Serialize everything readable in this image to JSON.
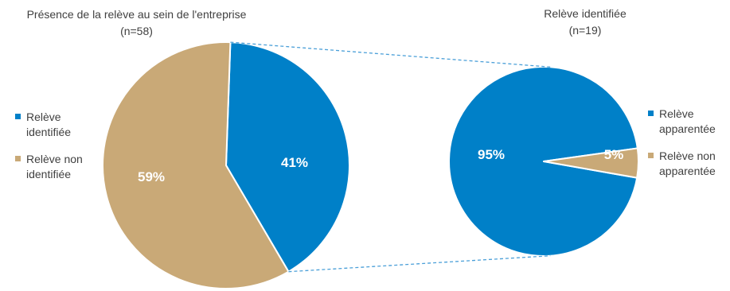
{
  "chart_data": [
    {
      "type": "pie",
      "title": "Présence de la relève au sein de l'entreprise",
      "subtitle": "(n=58)",
      "slices": [
        {
          "label": "Relève identifiée",
          "value": 41,
          "value_label": "41%",
          "color": "#0080c8"
        },
        {
          "label": "Relève non identifiée",
          "value": 59,
          "value_label": "59%",
          "color": "#c9a977"
        }
      ],
      "legend_labels": [
        "Relève\nidentifiée",
        "Relève non\nidentifiée"
      ],
      "legend": "left"
    },
    {
      "type": "pie",
      "title": "Relève identifiée",
      "subtitle": "(n=19)",
      "slices": [
        {
          "label": "Relève apparentée",
          "value": 95,
          "value_label": "95%",
          "color": "#0080c8"
        },
        {
          "label": "Relève non apparentée",
          "value": 5,
          "value_label": "5%",
          "color": "#c9a977"
        }
      ],
      "legend_labels": [
        "Relève\napparentée",
        "Relève non\napparentée"
      ],
      "legend": "right"
    }
  ],
  "connector_color": "#4a9fd8"
}
